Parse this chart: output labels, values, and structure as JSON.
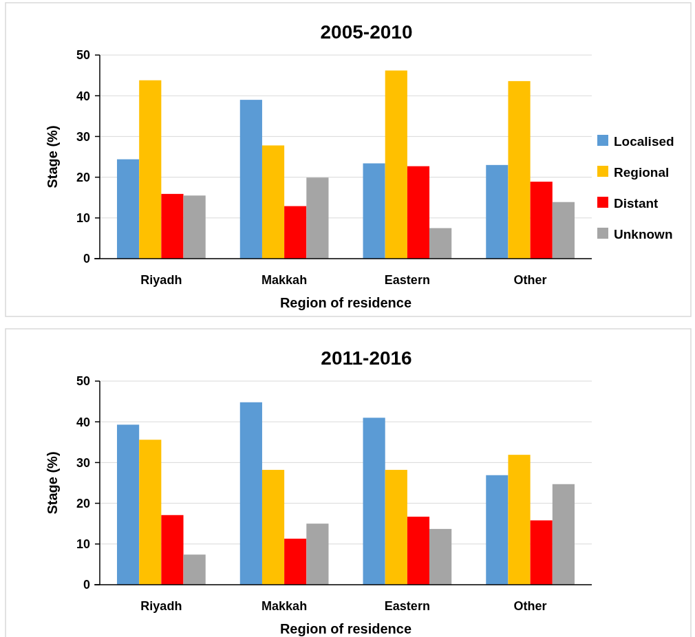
{
  "chart_data": [
    {
      "type": "bar",
      "title": "2005-2010",
      "xlabel": "Region of residence",
      "ylabel": "Stage (%)",
      "categories": [
        "Riyadh",
        "Makkah",
        "Eastern",
        "Other"
      ],
      "ylim": [
        0,
        50
      ],
      "yticks": [
        0,
        10,
        20,
        30,
        40,
        50
      ],
      "grid": "y",
      "legend": "right",
      "series": [
        {
          "name": "Localised",
          "color": "#5b9bd5",
          "values": [
            24.4,
            39.0,
            23.4,
            23.0
          ]
        },
        {
          "name": "Regional",
          "color": "#ffc000",
          "values": [
            43.8,
            27.8,
            46.2,
            43.6
          ]
        },
        {
          "name": "Distant",
          "color": "#ff0000",
          "values": [
            15.9,
            12.9,
            22.7,
            18.9
          ]
        },
        {
          "name": "Unknown",
          "color": "#a5a5a5",
          "values": [
            15.5,
            19.9,
            7.5,
            13.9
          ]
        }
      ]
    },
    {
      "type": "bar",
      "title": "2011-2016",
      "xlabel": "Region of residence",
      "ylabel": "Stage (%)",
      "categories": [
        "Riyadh",
        "Makkah",
        "Eastern",
        "Other"
      ],
      "ylim": [
        0,
        50
      ],
      "yticks": [
        0,
        10,
        20,
        30,
        40,
        50
      ],
      "grid": "y",
      "legend": false,
      "series": [
        {
          "color": "#5b9bd5",
          "values": [
            39.3,
            44.8,
            41.0,
            26.9
          ]
        },
        {
          "color": "#ffc000",
          "values": [
            35.6,
            28.2,
            28.2,
            31.9
          ]
        },
        {
          "color": "#ff0000",
          "values": [
            17.1,
            11.3,
            16.7,
            15.8
          ]
        },
        {
          "color": "#a5a5a5",
          "values": [
            7.4,
            15.0,
            13.7,
            24.7
          ]
        }
      ]
    }
  ]
}
